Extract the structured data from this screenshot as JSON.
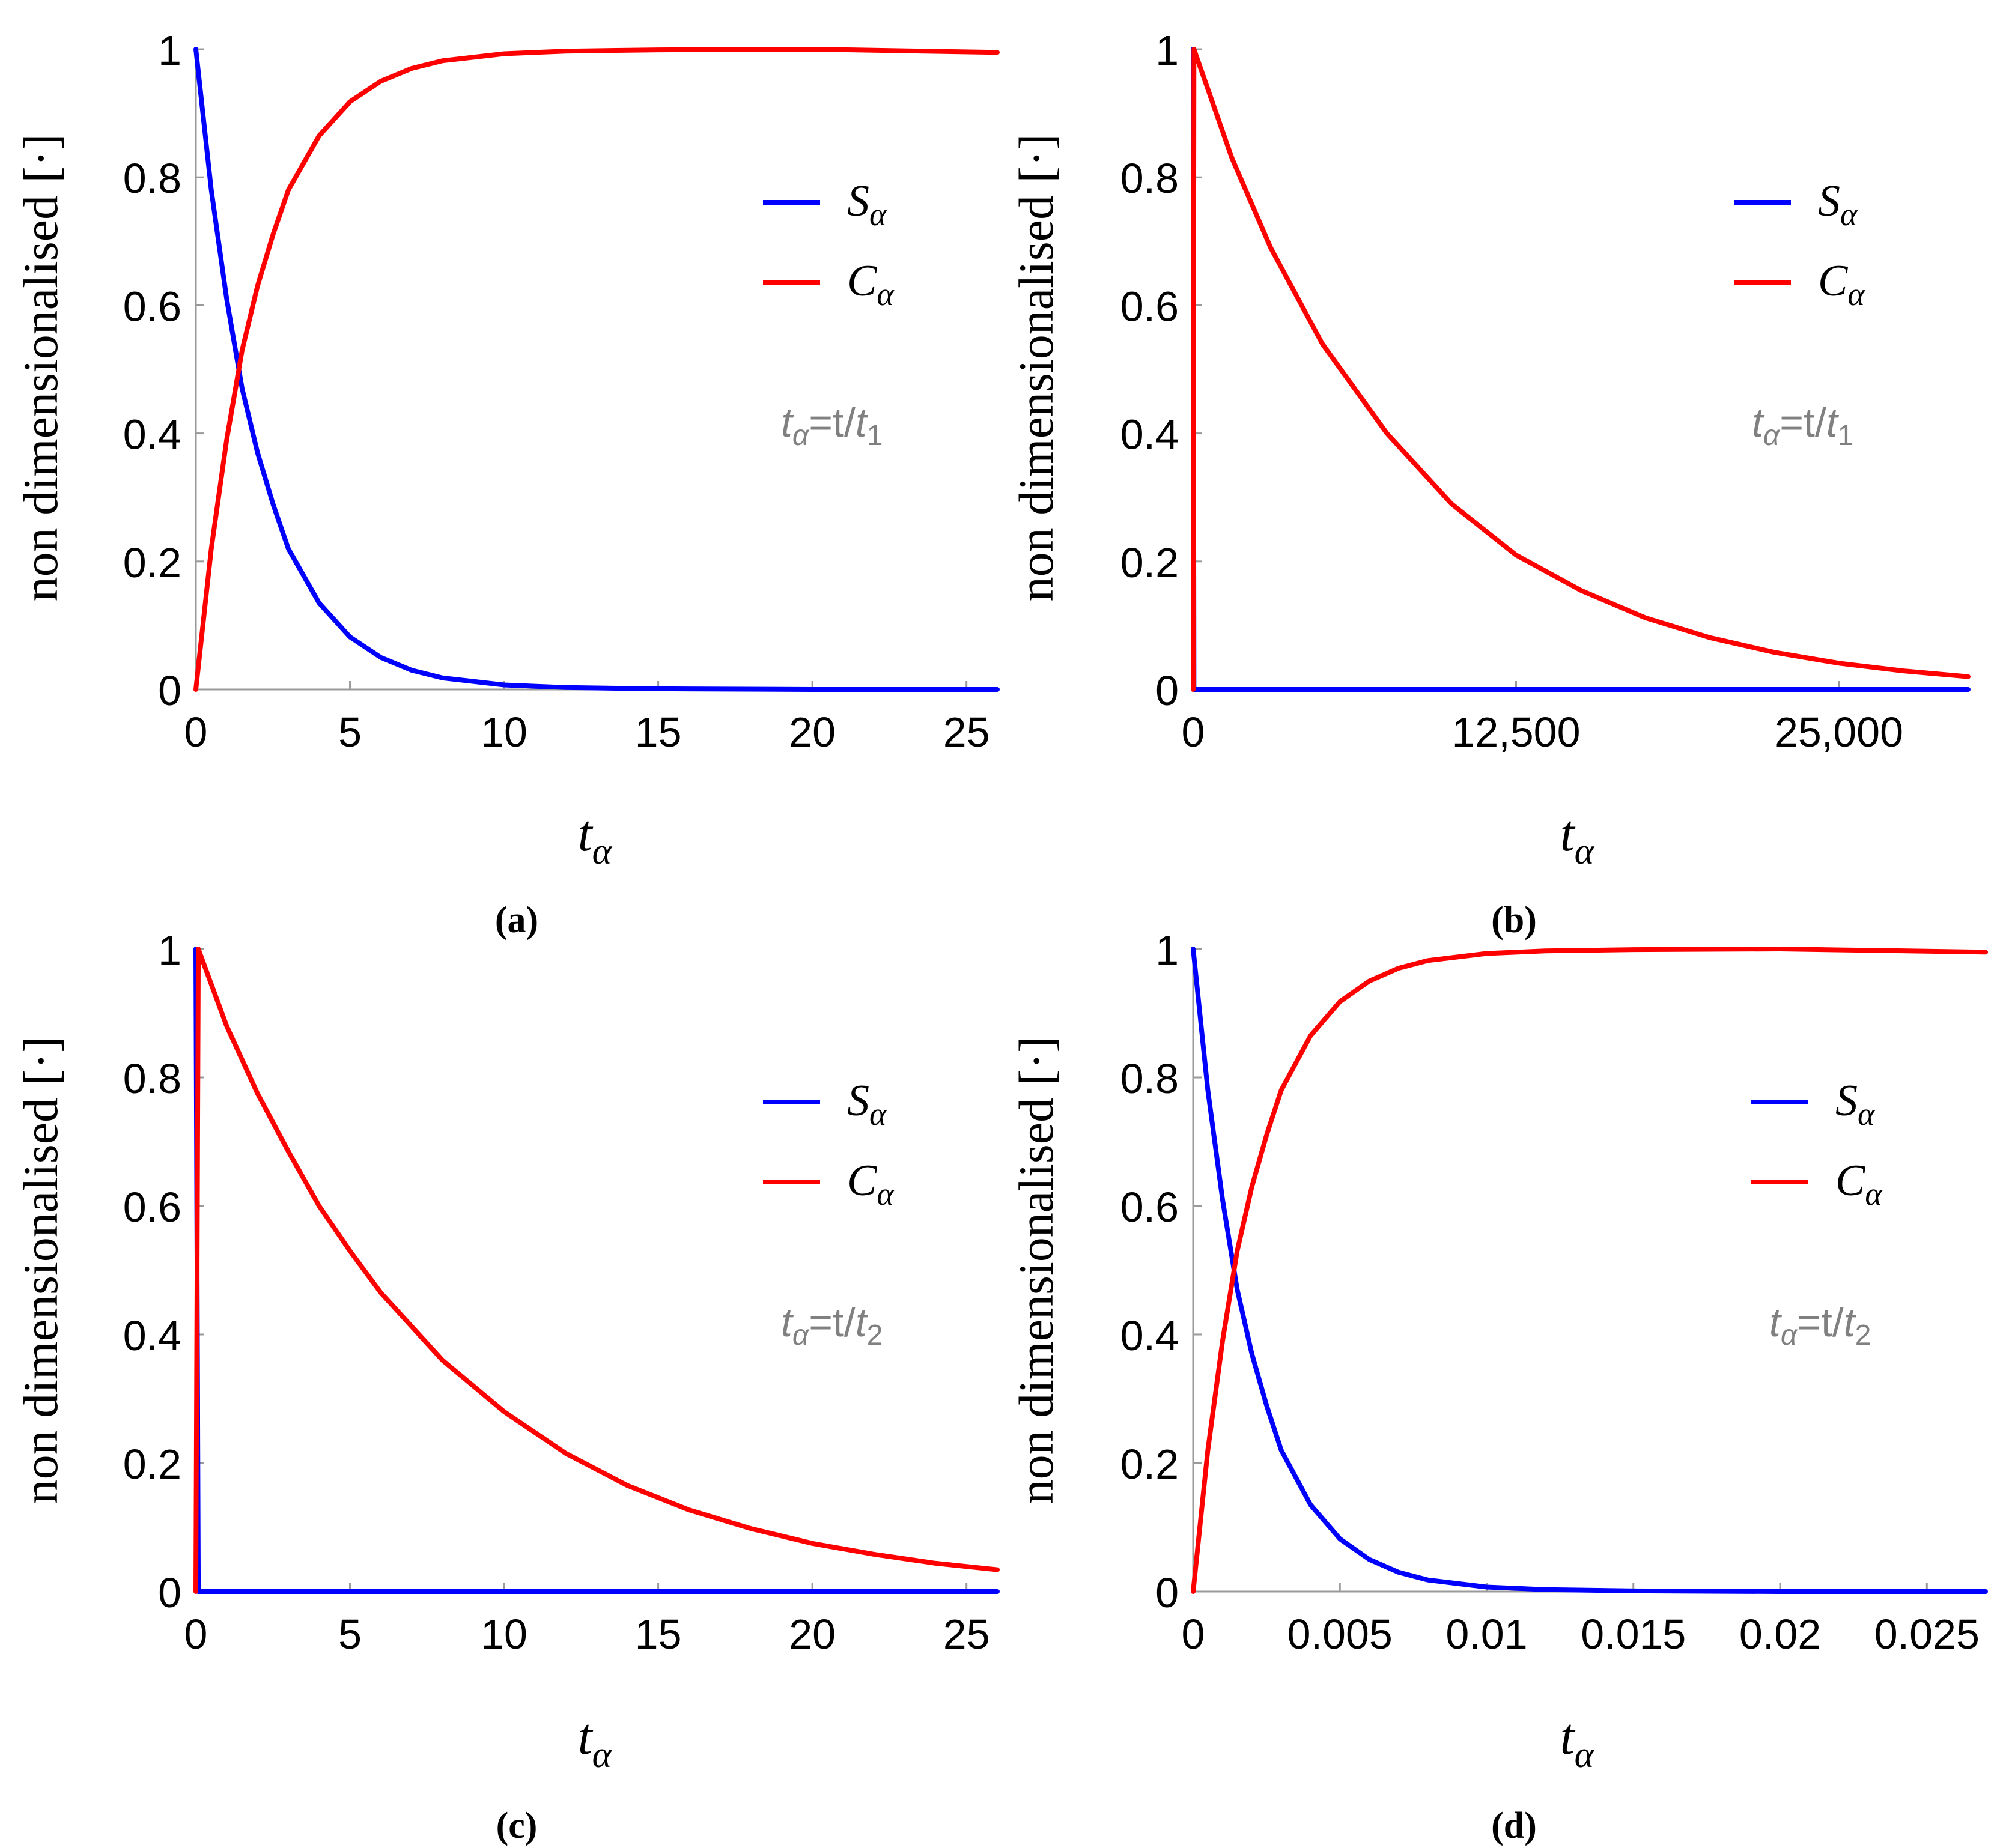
{
  "colors": {
    "S": "#0000ff",
    "C": "#ff0000",
    "note": "#808080",
    "axis": "#9a9a9a"
  },
  "chart_data": [
    {
      "id": "a",
      "type": "line",
      "caption": "(a)",
      "xlabel_main": "t",
      "xlabel_sub": "α",
      "ylabel": "non dimensionalised [·]",
      "xlim": [
        0,
        26
      ],
      "ylim": [
        0,
        1
      ],
      "x_ticks": [
        0,
        5,
        10,
        15,
        20,
        25
      ],
      "x_tick_labels": [
        "0",
        "5",
        "10",
        "15",
        "20",
        "25"
      ],
      "y_ticks": [
        0,
        0.2,
        0.4,
        0.6,
        0.8,
        1
      ],
      "y_tick_labels": [
        "0",
        "0.2",
        "0.4",
        "0.6",
        "0.8",
        "1"
      ],
      "legend": {
        "position": "upper-right",
        "entries": [
          {
            "main": "S",
            "sub": "α",
            "color": "#0000ff"
          },
          {
            "main": "C",
            "sub": "α",
            "color": "#ff0000"
          }
        ]
      },
      "note": {
        "main": "t",
        "sub": "α",
        "mid": "=t/",
        "main2": "t",
        "sub2": "1"
      },
      "series": [
        {
          "name": "Sα",
          "color": "#0000ff",
          "x": [
            0,
            0.5,
            1,
            1.5,
            2,
            2.5,
            3,
            4,
            5,
            6,
            7,
            8,
            10,
            12,
            15,
            20,
            26
          ],
          "values": [
            1,
            0.78,
            0.61,
            0.47,
            0.37,
            0.29,
            0.22,
            0.135,
            0.082,
            0.05,
            0.03,
            0.018,
            0.007,
            0.003,
            0.001,
            0,
            0
          ]
        },
        {
          "name": "Cα",
          "color": "#ff0000",
          "x": [
            0,
            0.5,
            1,
            1.5,
            2,
            2.5,
            3,
            4,
            5,
            6,
            7,
            8,
            10,
            12,
            15,
            20,
            26
          ],
          "values": [
            0,
            0.22,
            0.39,
            0.53,
            0.63,
            0.71,
            0.78,
            0.865,
            0.918,
            0.95,
            0.97,
            0.982,
            0.993,
            0.997,
            0.999,
            1,
            0.995
          ]
        }
      ]
    },
    {
      "id": "b",
      "type": "line",
      "caption": "(b)",
      "xlabel_main": "t",
      "xlabel_sub": "α",
      "ylabel": "non dimensionalised [·]",
      "xlim": [
        0,
        30000
      ],
      "ylim": [
        0,
        1
      ],
      "x_ticks": [
        0,
        12500,
        25000
      ],
      "x_tick_labels": [
        "0",
        "12,500",
        "25,000"
      ],
      "y_ticks": [
        0,
        0.2,
        0.4,
        0.6,
        0.8,
        1
      ],
      "y_tick_labels": [
        "0",
        "0.2",
        "0.4",
        "0.6",
        "0.8",
        "1"
      ],
      "legend": {
        "position": "upper-right",
        "entries": [
          {
            "main": "S",
            "sub": "α",
            "color": "#0000ff"
          },
          {
            "main": "C",
            "sub": "α",
            "color": "#ff0000"
          }
        ]
      },
      "note": {
        "main": "t",
        "sub": "α",
        "mid": "=t/",
        "main2": "t",
        "sub2": "1"
      },
      "series": [
        {
          "name": "Sα",
          "color": "#0000ff",
          "x": [
            0,
            30,
            1000,
            30000
          ],
          "values": [
            1,
            0,
            0,
            0
          ]
        },
        {
          "name": "Cα",
          "color": "#ff0000",
          "x": [
            0,
            30,
            1500,
            3000,
            5000,
            7500,
            10000,
            12500,
            15000,
            17500,
            20000,
            22500,
            25000,
            27500,
            30000
          ],
          "values": [
            0,
            1,
            0.83,
            0.69,
            0.54,
            0.4,
            0.29,
            0.21,
            0.155,
            0.112,
            0.081,
            0.058,
            0.041,
            0.029,
            0.02
          ]
        }
      ]
    },
    {
      "id": "c",
      "type": "line",
      "caption": "(c)",
      "xlabel_main": "t",
      "xlabel_sub": "α",
      "ylabel": "non dimensionalised [·]",
      "xlim": [
        0,
        26
      ],
      "ylim": [
        0,
        1
      ],
      "x_ticks": [
        0,
        5,
        10,
        15,
        20,
        25
      ],
      "x_tick_labels": [
        "0",
        "5",
        "10",
        "15",
        "20",
        "25"
      ],
      "y_ticks": [
        0,
        0.2,
        0.4,
        0.6,
        0.8,
        1
      ],
      "y_tick_labels": [
        "0",
        "0.2",
        "0.4",
        "0.6",
        "0.8",
        "1"
      ],
      "legend": {
        "position": "upper-right",
        "entries": [
          {
            "main": "S",
            "sub": "α",
            "color": "#0000ff"
          },
          {
            "main": "C",
            "sub": "α",
            "color": "#ff0000"
          }
        ]
      },
      "note": {
        "main": "t",
        "sub": "α",
        "mid": "=t/",
        "main2": "t",
        "sub2": "2"
      },
      "series": [
        {
          "name": "Sα",
          "color": "#0000ff",
          "x": [
            0,
            0.08,
            1,
            26
          ],
          "values": [
            1,
            0,
            0,
            0
          ]
        },
        {
          "name": "Cα",
          "color": "#ff0000",
          "x": [
            0,
            0.08,
            1,
            2,
            3,
            4,
            5,
            6,
            8,
            10,
            12,
            14,
            16,
            18,
            20,
            22,
            24,
            26
          ],
          "values": [
            0,
            1,
            0.88,
            0.775,
            0.685,
            0.6,
            0.53,
            0.465,
            0.36,
            0.28,
            0.215,
            0.165,
            0.127,
            0.098,
            0.075,
            0.058,
            0.044,
            0.034
          ]
        }
      ]
    },
    {
      "id": "d",
      "type": "line",
      "caption": "(d)",
      "xlabel_main": "t",
      "xlabel_sub": "α",
      "ylabel": "non dimensionalised [·]",
      "xlim": [
        0,
        0.027
      ],
      "ylim": [
        0,
        1
      ],
      "x_ticks": [
        0,
        0.005,
        0.01,
        0.015,
        0.02,
        0.025
      ],
      "x_tick_labels": [
        "0",
        "0.005",
        "0.01",
        "0.015",
        "0.02",
        "0.025"
      ],
      "y_ticks": [
        0,
        0.2,
        0.4,
        0.6,
        0.8,
        1
      ],
      "y_tick_labels": [
        "0",
        "0.2",
        "0.4",
        "0.6",
        "0.8",
        "1"
      ],
      "legend": {
        "position": "upper-right",
        "entries": [
          {
            "main": "S",
            "sub": "α",
            "color": "#0000ff"
          },
          {
            "main": "C",
            "sub": "α",
            "color": "#ff0000"
          }
        ]
      },
      "note": {
        "main": "t",
        "sub": "α",
        "mid": "=t/",
        "main2": "t",
        "sub2": "2"
      },
      "series": [
        {
          "name": "Sα",
          "color": "#0000ff",
          "x": [
            0,
            0.0005,
            0.001,
            0.0015,
            0.002,
            0.0025,
            0.003,
            0.004,
            0.005,
            0.006,
            0.007,
            0.008,
            0.01,
            0.012,
            0.015,
            0.02,
            0.027
          ],
          "values": [
            1,
            0.78,
            0.61,
            0.47,
            0.37,
            0.29,
            0.22,
            0.135,
            0.082,
            0.05,
            0.03,
            0.018,
            0.007,
            0.003,
            0.001,
            0,
            0
          ]
        },
        {
          "name": "Cα",
          "color": "#ff0000",
          "x": [
            0,
            0.0005,
            0.001,
            0.0015,
            0.002,
            0.0025,
            0.003,
            0.004,
            0.005,
            0.006,
            0.007,
            0.008,
            0.01,
            0.012,
            0.015,
            0.02,
            0.027
          ],
          "values": [
            0,
            0.22,
            0.39,
            0.53,
            0.63,
            0.71,
            0.78,
            0.865,
            0.918,
            0.95,
            0.97,
            0.982,
            0.993,
            0.997,
            0.999,
            1,
            0.995
          ]
        }
      ]
    }
  ]
}
